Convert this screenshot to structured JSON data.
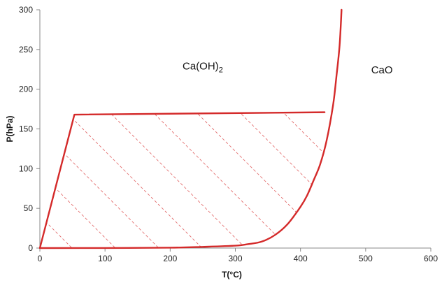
{
  "chart_data": {
    "type": "line",
    "title": "",
    "xlabel": "T(°C)",
    "ylabel": "P(hPa)",
    "xlim": [
      0,
      600
    ],
    "ylim": [
      0,
      300
    ],
    "x_ticks": [
      0,
      100,
      200,
      300,
      400,
      500,
      600
    ],
    "y_ticks": [
      0,
      50,
      100,
      150,
      200,
      250,
      300
    ],
    "grid": false,
    "colors": {
      "line": "#d42a2a",
      "hatch": "#e06060",
      "axis": "#8a8a8a"
    },
    "regions": [
      {
        "label_main": "Ca(OH)",
        "label_sub": "2",
        "x": 250,
        "y": 225
      },
      {
        "label_main": "CaO",
        "label_sub": "",
        "x": 525,
        "y": 220
      }
    ],
    "series": [
      {
        "role": "equilibrium-curve",
        "points": [
          [
            0,
            0
          ],
          [
            100,
            0.1
          ],
          [
            200,
            0.5
          ],
          [
            250,
            1.5
          ],
          [
            300,
            3
          ],
          [
            320,
            5
          ],
          [
            340,
            8
          ],
          [
            360,
            16
          ],
          [
            380,
            30
          ],
          [
            400,
            52
          ],
          [
            410,
            66
          ],
          [
            420,
            85
          ],
          [
            430,
            105
          ],
          [
            440,
            135
          ],
          [
            450,
            180
          ],
          [
            455,
            215
          ],
          [
            460,
            255
          ],
          [
            463,
            300
          ]
        ]
      },
      {
        "role": "hatched-region-upper",
        "points": [
          [
            0,
            0
          ],
          [
            53,
            168
          ],
          [
            437,
            171
          ]
        ]
      }
    ],
    "hatched_region": {
      "bounds": "left line, upper line, equilibrium curve"
    }
  }
}
